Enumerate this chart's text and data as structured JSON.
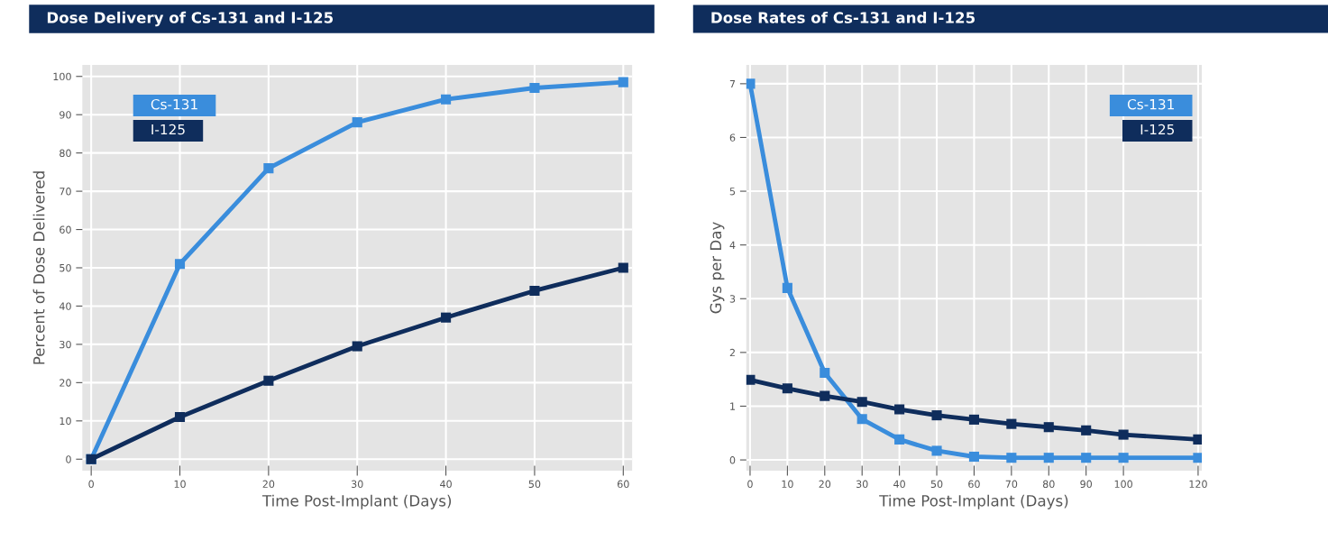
{
  "chart_data": [
    {
      "type": "line",
      "title": "Dose Delivery of Cs-131 and I-125",
      "xlabel": "Time Post-Implant (Days)",
      "ylabel": "Percent of Dose Delivered",
      "x": [
        0,
        10,
        20,
        30,
        40,
        50,
        60
      ],
      "series": [
        {
          "name": "Cs-131",
          "color": "#3a8ddc",
          "values": [
            0,
            51,
            76,
            88,
            94,
            97,
            98.5
          ]
        },
        {
          "name": "I-125",
          "color": "#0f2d5c",
          "values": [
            0,
            11,
            20.5,
            29.5,
            37,
            44,
            50
          ]
        }
      ],
      "xlim": [
        -1,
        61
      ],
      "ylim": [
        -3,
        103
      ],
      "xticks": [
        0,
        10,
        20,
        30,
        40,
        50,
        60
      ],
      "yticks": [
        0,
        10,
        20,
        30,
        40,
        50,
        60,
        70,
        80,
        90,
        100
      ],
      "grid": true,
      "legend": "top left",
      "marker": "square",
      "line_style": "solid"
    },
    {
      "type": "line",
      "title": "Dose Rates of Cs-131 and I-125",
      "xlabel": "Time Post-Implant (Days)",
      "ylabel": "Gys per Day",
      "x": [
        0,
        10,
        20,
        30,
        40,
        50,
        60,
        70,
        80,
        90,
        100,
        120
      ],
      "series": [
        {
          "name": "Cs-131",
          "color": "#3a8ddc",
          "values": [
            7,
            3.2,
            1.62,
            0.76,
            0.38,
            0.17,
            0.06,
            0.04,
            0.04,
            0.04,
            0.04,
            0.04
          ]
        },
        {
          "name": "I-125",
          "color": "#0f2d5c",
          "values": [
            1.49,
            1.33,
            1.19,
            1.08,
            0.94,
            0.83,
            0.75,
            0.67,
            0.61,
            0.55,
            0.47,
            0.38
          ]
        }
      ],
      "xlim": [
        -1,
        121
      ],
      "ylim": [
        -0.2,
        7.35
      ],
      "xticks": [
        0,
        10,
        20,
        30,
        40,
        50,
        60,
        70,
        80,
        90,
        100,
        120
      ],
      "yticks": [
        0,
        1,
        2,
        3,
        4,
        5,
        6,
        7
      ],
      "grid": true,
      "legend": "top right",
      "marker": "square",
      "line_style": "solid"
    }
  ]
}
